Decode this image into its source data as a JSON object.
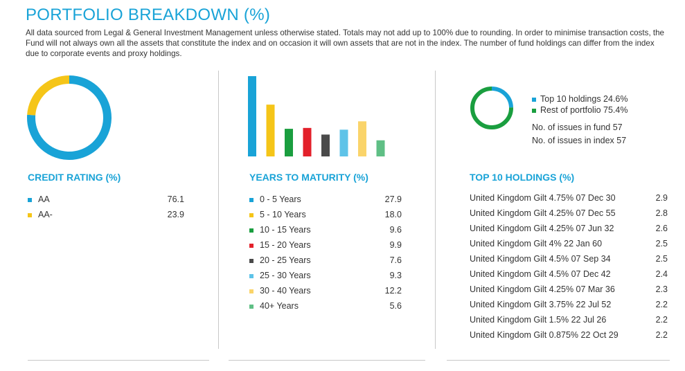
{
  "header": {
    "title": "PORTFOLIO BREAKDOWN (%)",
    "intro": "All data sourced from Legal & General Investment Management unless otherwise stated. Totals may not add up to 100% due to rounding. In order to minimise transaction costs, the Fund will not always own all the assets that constitute the index and on occasion it will own assets that are not in the index. The number of fund holdings can differ from the index due to corporate events and proxy holdings."
  },
  "colors": {
    "accent": "#19a3d7",
    "divider": "#c8c8c8"
  },
  "chart_data": [
    {
      "type": "pie",
      "title": "CREDIT RATING (%)",
      "categories": [
        "AA",
        "AA-"
      ],
      "values": [
        76.1,
        23.9
      ],
      "colors": [
        "#19a3d7",
        "#f5c518"
      ],
      "value_labels": [
        "76.1",
        "23.9"
      ]
    },
    {
      "type": "bar",
      "title": "YEARS TO MATURITY (%)",
      "categories": [
        "0 - 5 Years",
        "5 - 10 Years",
        "10 - 15 Years",
        "15 - 20 Years",
        "20 - 25 Years",
        "25 - 30 Years",
        "30 - 40 Years",
        "40+ Years"
      ],
      "values": [
        27.9,
        18.0,
        9.6,
        9.9,
        7.6,
        9.3,
        12.2,
        5.6
      ],
      "value_labels": [
        "27.9",
        "18.0",
        "9.6",
        "9.9",
        "7.6",
        "9.3",
        "12.2",
        "5.6"
      ],
      "colors": [
        "#19a3d7",
        "#f5c518",
        "#1a9e3f",
        "#e3212b",
        "#4a4a4a",
        "#5ec3e8",
        "#fad46a",
        "#5fbf85"
      ]
    },
    {
      "type": "pie",
      "title": "TOP 10 HOLDINGS (%)",
      "categories": [
        "Top 10 holdings",
        "Rest of portfolio"
      ],
      "values": [
        24.6,
        75.4
      ],
      "colors": [
        "#19a3d7",
        "#1a9e3f"
      ],
      "legend_labels": [
        "Top 10 holdings 24.6%",
        "Rest of portfolio 75.4%"
      ]
    },
    {
      "type": "table",
      "title": "TOP 10 HOLDINGS (%)",
      "rows": [
        {
          "name": "United Kingdom Gilt 4.75% 07 Dec 30",
          "value": "2.9"
        },
        {
          "name": "United Kingdom Gilt 4.25% 07 Dec 55",
          "value": "2.8"
        },
        {
          "name": "United Kingdom Gilt 4.25% 07 Jun 32",
          "value": "2.6"
        },
        {
          "name": "United Kingdom Gilt 4% 22 Jan 60",
          "value": "2.5"
        },
        {
          "name": "United Kingdom Gilt 4.5% 07 Sep 34",
          "value": "2.5"
        },
        {
          "name": "United Kingdom Gilt 4.5% 07 Dec 42",
          "value": "2.4"
        },
        {
          "name": "United Kingdom Gilt 4.25% 07 Mar 36",
          "value": "2.3"
        },
        {
          "name": "United Kingdom Gilt 3.75% 22 Jul 52",
          "value": "2.2"
        },
        {
          "name": "United Kingdom Gilt 1.5% 22 Jul 26",
          "value": "2.2"
        },
        {
          "name": "United Kingdom Gilt 0.875% 22 Oct 29",
          "value": "2.2"
        }
      ]
    }
  ],
  "issues": {
    "fund": "No. of issues in fund 57",
    "index": "No. of issues in index 57"
  }
}
